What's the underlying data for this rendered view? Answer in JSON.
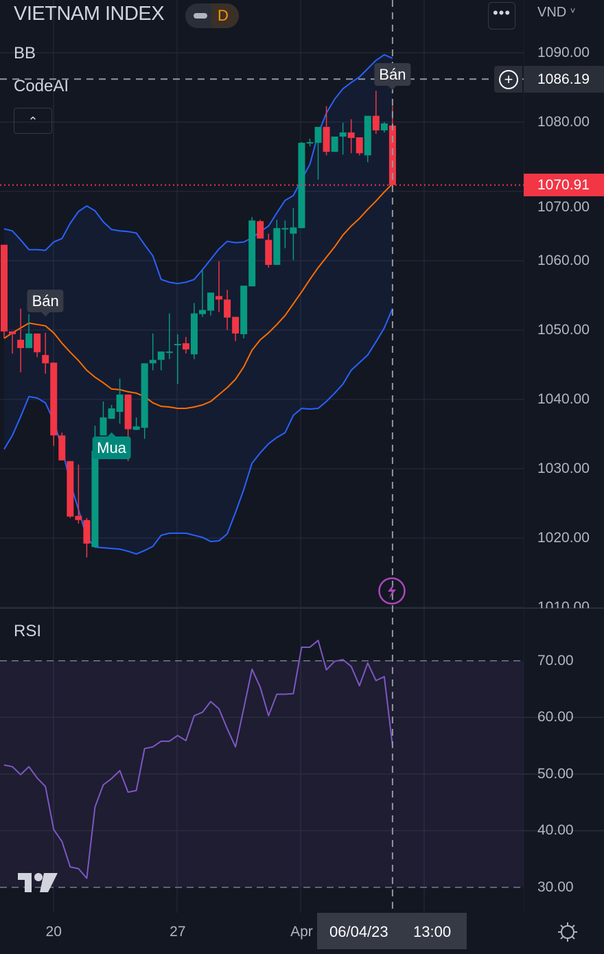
{
  "header": {
    "symbol": "VIETNAM INDEX",
    "interval": "D",
    "currency": "VND",
    "currency_icon": "chevron-down-icon",
    "more_icon": "more-horizontal-icon"
  },
  "indicators": {
    "bb": "BB",
    "codeai": "CodeAI",
    "rsi": "RSI",
    "collapse_icon": "chevron-up-icon"
  },
  "crosshair": {
    "price": "1086.19",
    "date": "06/04/23",
    "time": "13:00"
  },
  "last_price": "1070.91",
  "colors": {
    "background": "#131722",
    "up": "#089981",
    "down": "#f23645",
    "bb_bands": "#2962ff",
    "bb_basis": "#ff6d00",
    "rsi_line": "#7e57c2",
    "alert_icon": "#ab47bc"
  },
  "chart_data": [
    {
      "type": "candlestick",
      "ylim": [
        1009.9,
        1097.6
      ],
      "y_ticks": [
        "1090.00",
        "1080.00",
        "1070.00",
        "1060.00",
        "1050.00",
        "1040.00",
        "1030.00",
        "1020.00",
        "1010.00"
      ],
      "x_ticks": [
        {
          "label": "20",
          "index": 6
        },
        {
          "label": "27",
          "index": 21
        },
        {
          "label": "Apr",
          "index": 36
        }
      ],
      "ohlc": [
        [
          1062.3,
          1062.3,
          1048.8,
          1049.8
        ],
        [
          1049.8,
          1049.8,
          1046.6,
          1049.4
        ],
        [
          1048.6,
          1053.1,
          1043.9,
          1047.4
        ],
        [
          1047.4,
          1052.3,
          1047.4,
          1049.5
        ],
        [
          1049.5,
          1049.5,
          1046.1,
          1046.8
        ],
        [
          1046.4,
          1049.6,
          1043.7,
          1045.2
        ],
        [
          1045.3,
          1045.3,
          1033.3,
          1034.8
        ],
        [
          1034.8,
          1035.2,
          1031.2,
          1031.2
        ],
        [
          1031.1,
          1031.1,
          1022.9,
          1023.1
        ],
        [
          1023.2,
          1030.6,
          1022.1,
          1022.6
        ],
        [
          1022.6,
          1022.9,
          1017.2,
          1019.2
        ],
        [
          1018.7,
          1036.2,
          1018.6,
          1032.6
        ],
        [
          1034.8,
          1039.7,
          1034.8,
          1037.4
        ],
        [
          1037.2,
          1039.2,
          1037.2,
          1038.7
        ],
        [
          1038.2,
          1043.0,
          1036.5,
          1040.7
        ],
        [
          1040.7,
          1040.7,
          1031.1,
          1035.7
        ],
        [
          1035.6,
          1037.4,
          1035.6,
          1036.1
        ],
        [
          1035.9,
          1045.2,
          1034.3,
          1045.2
        ],
        [
          1045.2,
          1049.5,
          1044.2,
          1045.7
        ],
        [
          1045.7,
          1046.9,
          1044.2,
          1046.9
        ],
        [
          1046.8,
          1052.4,
          1045.8,
          1046.9
        ],
        [
          1047.9,
          1049.4,
          1042.2,
          1048.0
        ],
        [
          1048.1,
          1049.0,
          1046.6,
          1047.2
        ],
        [
          1046.5,
          1053.9,
          1045.8,
          1052.4
        ],
        [
          1052.3,
          1058.6,
          1051.9,
          1052.9
        ],
        [
          1052.8,
          1055.4,
          1052.1,
          1055.4
        ],
        [
          1054.9,
          1059.9,
          1052.6,
          1054.4
        ],
        [
          1054.4,
          1055.8,
          1050.0,
          1051.8
        ],
        [
          1051.9,
          1051.9,
          1048.4,
          1049.5
        ],
        [
          1049.4,
          1056.4,
          1048.8,
          1056.4
        ],
        [
          1056.3,
          1066.3,
          1056.3,
          1065.8
        ],
        [
          1065.7,
          1065.9,
          1063.2,
          1063.2
        ],
        [
          1063.0,
          1063.9,
          1059.0,
          1059.4
        ],
        [
          1059.4,
          1065.9,
          1059.4,
          1064.7
        ],
        [
          1064.6,
          1065.8,
          1061.8,
          1064.7
        ],
        [
          1063.9,
          1067.6,
          1060.1,
          1064.8
        ],
        [
          1064.7,
          1077.1,
          1064.7,
          1077.0
        ],
        [
          1077.0,
          1077.6,
          1076.5,
          1077.1
        ],
        [
          1077.0,
          1079.3,
          1071.7,
          1079.3
        ],
        [
          1079.3,
          1082.3,
          1075.2,
          1075.7
        ],
        [
          1075.7,
          1077.9,
          1075.7,
          1077.9
        ],
        [
          1077.9,
          1079.9,
          1075.3,
          1078.5
        ],
        [
          1078.5,
          1080.4,
          1075.5,
          1077.7
        ],
        [
          1077.8,
          1077.8,
          1075.2,
          1075.5
        ],
        [
          1075.2,
          1080.9,
          1074.2,
          1080.9
        ],
        [
          1080.9,
          1084.5,
          1078.3,
          1078.8
        ],
        [
          1078.8,
          1080.0,
          1078.5,
          1079.8
        ],
        [
          1079.5,
          1082.3,
          1070.91,
          1070.91
        ]
      ],
      "bb_upper": [
        1064.6,
        1064.3,
        1063.0,
        1061.6,
        1061.6,
        1061.5,
        1062.7,
        1063.2,
        1065.4,
        1067.1,
        1067.9,
        1067.2,
        1065.6,
        1064.5,
        1064.3,
        1064.2,
        1064.0,
        1062.3,
        1060.7,
        1057.3,
        1056.9,
        1056.7,
        1056.9,
        1057.3,
        1058.7,
        1060.2,
        1061.7,
        1062.8,
        1062.6,
        1062.7,
        1063.3,
        1064.2,
        1065.0,
        1066.9,
        1068.7,
        1069.4,
        1071.7,
        1073.9,
        1078.3,
        1081.3,
        1083.3,
        1084.8,
        1085.7,
        1086.5,
        1087.7,
        1088.9,
        1089.7,
        1089.2
      ],
      "bb_basis": [
        1048.8,
        1049.6,
        1050.3,
        1051.0,
        1050.8,
        1050.6,
        1049.6,
        1048.1,
        1046.8,
        1045.6,
        1044.2,
        1043.2,
        1042.4,
        1041.5,
        1041.4,
        1041.1,
        1040.9,
        1040.4,
        1039.5,
        1039.0,
        1038.9,
        1038.7,
        1038.7,
        1038.9,
        1039.2,
        1039.7,
        1040.7,
        1041.7,
        1042.9,
        1044.7,
        1047.1,
        1048.6,
        1049.6,
        1050.8,
        1052.1,
        1053.8,
        1055.5,
        1057.3,
        1059.0,
        1060.5,
        1062.0,
        1063.7,
        1065.0,
        1066.1,
        1067.4,
        1068.6,
        1069.9,
        1071.1
      ],
      "bb_lower": [
        1032.8,
        1034.8,
        1037.5,
        1040.4,
        1040.2,
        1039.5,
        1036.9,
        1033.0,
        1028.0,
        1024.1,
        1020.1,
        1018.7,
        1018.6,
        1018.5,
        1018.4,
        1018.1,
        1017.7,
        1018.2,
        1018.8,
        1020.4,
        1020.7,
        1020.7,
        1020.7,
        1020.4,
        1020.1,
        1019.5,
        1019.6,
        1020.6,
        1023.7,
        1027.0,
        1030.8,
        1032.3,
        1033.6,
        1034.5,
        1035.2,
        1037.7,
        1038.7,
        1038.6,
        1038.7,
        1039.7,
        1040.9,
        1042.2,
        1044.2,
        1045.3,
        1046.4,
        1048.3,
        1050.3,
        1053.1
      ],
      "signals": [
        {
          "label": "Bán",
          "index": 5,
          "side": "sell"
        },
        {
          "label": "Mua",
          "index": 13,
          "side": "buy"
        },
        {
          "label": "Bán",
          "index": 47,
          "side": "sell"
        }
      ],
      "grid": true
    },
    {
      "type": "line",
      "title": "RSI",
      "ylim": [
        25.5,
        79.3
      ],
      "y_ticks": [
        "70.00",
        "60.00",
        "50.00",
        "40.00",
        "30.00"
      ],
      "bands": [
        30,
        70
      ],
      "values": [
        51.6,
        51.3,
        49.9,
        51.3,
        49.3,
        47.8,
        40.2,
        38.1,
        33.6,
        33.3,
        31.6,
        44.2,
        48.1,
        49.2,
        50.6,
        46.8,
        47.1,
        54.5,
        54.8,
        55.8,
        55.8,
        56.8,
        55.9,
        60.3,
        60.9,
        62.8,
        61.5,
        58.0,
        54.8,
        61.6,
        68.5,
        65.3,
        60.3,
        64.1,
        64.1,
        64.2,
        72.4,
        72.4,
        73.6,
        68.4,
        69.9,
        70.2,
        69.0,
        65.6,
        69.6,
        66.5,
        67.2,
        55.0
      ]
    }
  ]
}
